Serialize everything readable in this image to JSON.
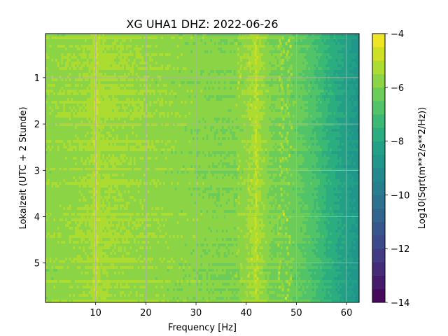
{
  "chart_data": {
    "type": "heatmap",
    "title": "XG UHA1  DHZ: 2022-06-26",
    "xlabel": "Frequency [Hz]",
    "ylabel": "Lokalzeit (UTC + 2 Stunde)",
    "xlim": [
      0,
      62.5
    ],
    "ylim": [
      5.85,
      0.05
    ],
    "y_inverted": true,
    "xticks": [
      10,
      20,
      30,
      40,
      50,
      60
    ],
    "xtick_labels": [
      "10",
      "20",
      "30",
      "40",
      "50",
      "60"
    ],
    "yticks": [
      1,
      2,
      3,
      4,
      5
    ],
    "ytick_labels": [
      "1",
      "2",
      "3",
      "4",
      "5"
    ],
    "grid": true,
    "colormap": "viridis",
    "colorbar": {
      "label": "Log10(Sqrt(m**2/s**2/Hz))",
      "range": [
        -14,
        -4
      ],
      "levels": 20,
      "ticks": [
        -4,
        -6,
        -8,
        -10,
        -12,
        -14
      ],
      "tick_labels": [
        "−4",
        "−6",
        "−8",
        "−10",
        "−12",
        "−14"
      ]
    },
    "spectral_profile": {
      "frequency": [
        0,
        5,
        9,
        10,
        11,
        15,
        20,
        25,
        30,
        35,
        38,
        40,
        42,
        45,
        48,
        50,
        52,
        54,
        56,
        58,
        60,
        62.5
      ],
      "log10_amplitude": [
        -5.7,
        -5.6,
        -5.5,
        -5.0,
        -5.4,
        -5.5,
        -5.6,
        -5.7,
        -5.8,
        -5.9,
        -5.9,
        -5.6,
        -5.3,
        -6.0,
        -6.1,
        -6.3,
        -6.6,
        -7.0,
        -7.5,
        -7.9,
        -8.3,
        -8.8
      ]
    },
    "persistent_lines_hz": [
      10,
      42
    ],
    "intermittent_lines_hz": [
      38.5,
      40.5,
      47,
      48.5
    ]
  }
}
